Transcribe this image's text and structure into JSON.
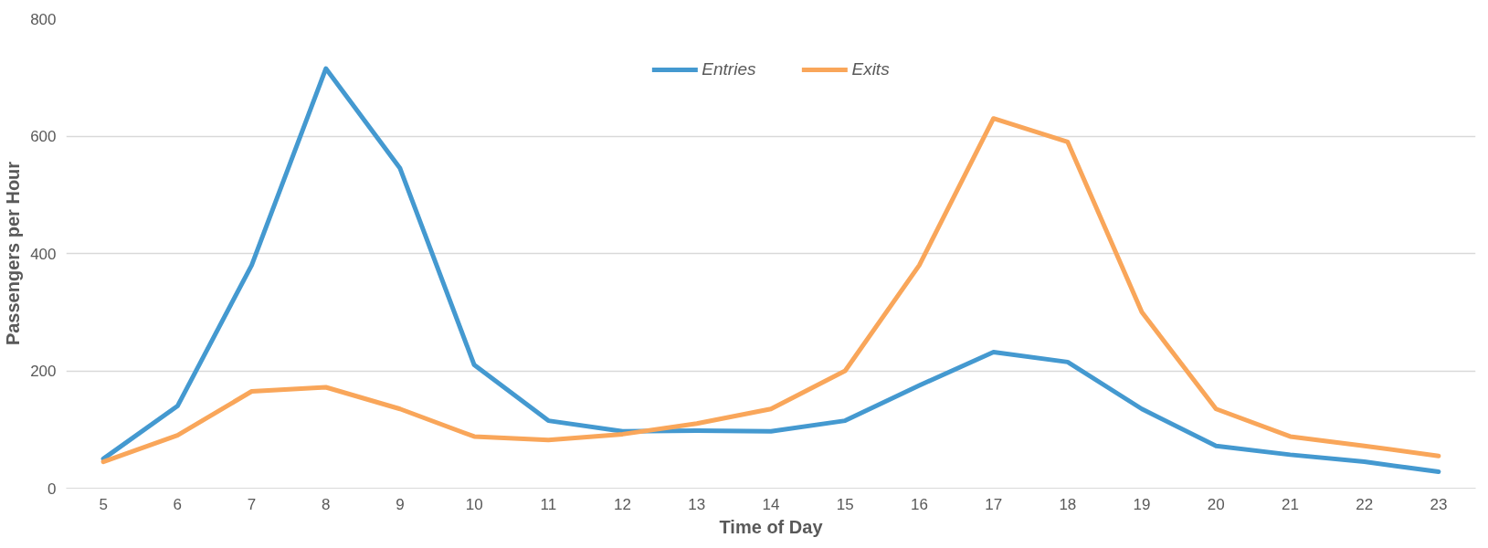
{
  "chart_data": {
    "type": "line",
    "xlabel": "Time of Day",
    "ylabel": "Passengers per Hour",
    "x": [
      5,
      6,
      7,
      8,
      9,
      10,
      11,
      12,
      13,
      14,
      15,
      16,
      17,
      18,
      19,
      20,
      21,
      22,
      23
    ],
    "series": [
      {
        "name": "Entries",
        "color": "#4499d0",
        "values": [
          50,
          140,
          380,
          715,
          545,
          210,
          115,
          97,
          98,
          97,
          115,
          175,
          232,
          215,
          135,
          72,
          57,
          45,
          28
        ]
      },
      {
        "name": "Exits",
        "color": "#f9a65a",
        "values": [
          45,
          90,
          165,
          172,
          135,
          88,
          82,
          92,
          110,
          135,
          200,
          380,
          630,
          590,
          300,
          135,
          88,
          72,
          55
        ]
      }
    ],
    "xlim": [
      4.5,
      23.5
    ],
    "xticks": [
      5,
      6,
      7,
      8,
      9,
      10,
      11,
      12,
      13,
      14,
      15,
      16,
      17,
      18,
      19,
      20,
      21,
      22,
      23
    ],
    "ylim": [
      0,
      800
    ],
    "yticks": [
      0,
      200,
      400,
      600,
      800
    ],
    "grid": "y",
    "legend": "top",
    "marker": "none",
    "line_style": "solid"
  }
}
